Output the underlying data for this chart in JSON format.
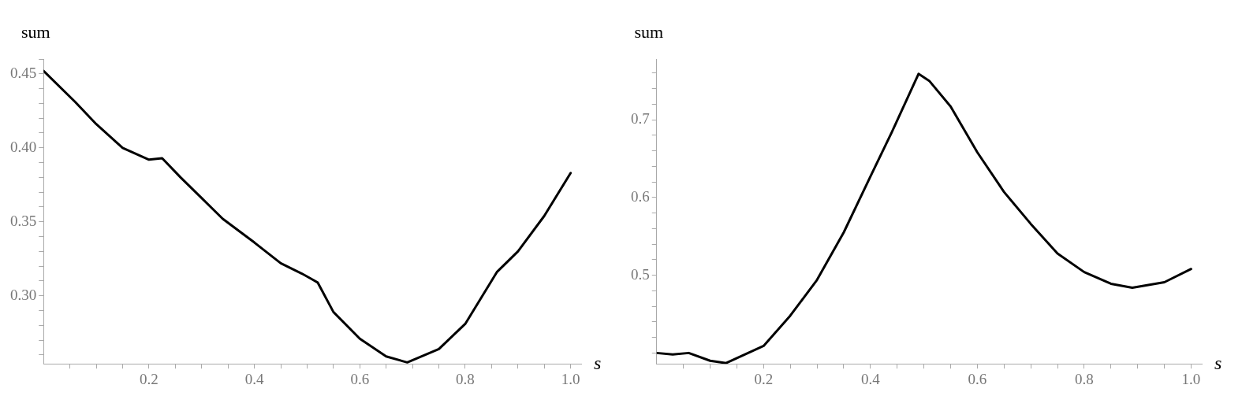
{
  "chart_data": [
    {
      "type": "line",
      "xlabel": "s",
      "ylabel": "sum",
      "marker": "none",
      "line_style": "solid",
      "grid": false,
      "legend": false,
      "xlim": [
        0,
        1.02
      ],
      "ylim": [
        0.254,
        0.46
      ],
      "xticks": [
        {
          "value": 0.05,
          "label": null
        },
        {
          "value": 0.1,
          "label": null
        },
        {
          "value": 0.15,
          "label": null
        },
        {
          "value": 0.2,
          "label": "0.2"
        },
        {
          "value": 0.25,
          "label": null
        },
        {
          "value": 0.3,
          "label": null
        },
        {
          "value": 0.35,
          "label": null
        },
        {
          "value": 0.4,
          "label": "0.4"
        },
        {
          "value": 0.45,
          "label": null
        },
        {
          "value": 0.5,
          "label": null
        },
        {
          "value": 0.55,
          "label": null
        },
        {
          "value": 0.6,
          "label": "0.6"
        },
        {
          "value": 0.65,
          "label": null
        },
        {
          "value": 0.7,
          "label": null
        },
        {
          "value": 0.75,
          "label": null
        },
        {
          "value": 0.8,
          "label": "0.8"
        },
        {
          "value": 0.85,
          "label": null
        },
        {
          "value": 0.9,
          "label": null
        },
        {
          "value": 0.95,
          "label": null
        },
        {
          "value": 1.0,
          "label": "1.0"
        }
      ],
      "yticks": [
        {
          "value": 0.26,
          "label": null
        },
        {
          "value": 0.27,
          "label": null
        },
        {
          "value": 0.28,
          "label": null
        },
        {
          "value": 0.29,
          "label": null
        },
        {
          "value": 0.3,
          "label": "0.30"
        },
        {
          "value": 0.31,
          "label": null
        },
        {
          "value": 0.32,
          "label": null
        },
        {
          "value": 0.33,
          "label": null
        },
        {
          "value": 0.34,
          "label": null
        },
        {
          "value": 0.35,
          "label": "0.35"
        },
        {
          "value": 0.36,
          "label": null
        },
        {
          "value": 0.37,
          "label": null
        },
        {
          "value": 0.38,
          "label": null
        },
        {
          "value": 0.39,
          "label": null
        },
        {
          "value": 0.4,
          "label": "0.40"
        },
        {
          "value": 0.41,
          "label": null
        },
        {
          "value": 0.42,
          "label": null
        },
        {
          "value": 0.43,
          "label": null
        },
        {
          "value": 0.44,
          "label": null
        },
        {
          "value": 0.45,
          "label": "0.45"
        },
        {
          "value": 0.46,
          "label": null
        }
      ],
      "series": [
        {
          "color": "#000000",
          "x": [
            0,
            0.06,
            0.1,
            0.15,
            0.2,
            0.225,
            0.26,
            0.3,
            0.34,
            0.4,
            0.45,
            0.49,
            0.51,
            0.52,
            0.55,
            0.6,
            0.65,
            0.69,
            0.75,
            0.8,
            0.86,
            0.9,
            0.95,
            1.0
          ],
          "values": [
            0.452,
            0.431,
            0.416,
            0.4,
            0.392,
            0.393,
            0.38,
            0.366,
            0.352,
            0.336,
            0.322,
            0.315,
            0.311,
            0.309,
            0.289,
            0.271,
            0.259,
            0.255,
            0.264,
            0.281,
            0.316,
            0.33,
            0.354,
            0.383
          ]
        }
      ]
    },
    {
      "type": "line",
      "xlabel": "s",
      "ylabel": "sum",
      "marker": "none",
      "line_style": "solid",
      "grid": false,
      "legend": false,
      "xlim": [
        0,
        1.02
      ],
      "ylim": [
        0.386,
        0.778
      ],
      "xticks": [
        {
          "value": 0.05,
          "label": null
        },
        {
          "value": 0.1,
          "label": null
        },
        {
          "value": 0.15,
          "label": null
        },
        {
          "value": 0.2,
          "label": "0.2"
        },
        {
          "value": 0.25,
          "label": null
        },
        {
          "value": 0.3,
          "label": null
        },
        {
          "value": 0.35,
          "label": null
        },
        {
          "value": 0.4,
          "label": "0.4"
        },
        {
          "value": 0.45,
          "label": null
        },
        {
          "value": 0.5,
          "label": null
        },
        {
          "value": 0.55,
          "label": null
        },
        {
          "value": 0.6,
          "label": "0.6"
        },
        {
          "value": 0.65,
          "label": null
        },
        {
          "value": 0.7,
          "label": null
        },
        {
          "value": 0.75,
          "label": null
        },
        {
          "value": 0.8,
          "label": "0.8"
        },
        {
          "value": 0.85,
          "label": null
        },
        {
          "value": 0.9,
          "label": null
        },
        {
          "value": 0.95,
          "label": null
        },
        {
          "value": 1.0,
          "label": "1.0"
        }
      ],
      "yticks": [
        {
          "value": 0.4,
          "label": null
        },
        {
          "value": 0.42,
          "label": null
        },
        {
          "value": 0.44,
          "label": null
        },
        {
          "value": 0.46,
          "label": null
        },
        {
          "value": 0.48,
          "label": null
        },
        {
          "value": 0.5,
          "label": "0.5"
        },
        {
          "value": 0.52,
          "label": null
        },
        {
          "value": 0.54,
          "label": null
        },
        {
          "value": 0.56,
          "label": null
        },
        {
          "value": 0.58,
          "label": null
        },
        {
          "value": 0.6,
          "label": "0.6"
        },
        {
          "value": 0.62,
          "label": null
        },
        {
          "value": 0.64,
          "label": null
        },
        {
          "value": 0.66,
          "label": null
        },
        {
          "value": 0.68,
          "label": null
        },
        {
          "value": 0.7,
          "label": "0.7"
        },
        {
          "value": 0.72,
          "label": null
        },
        {
          "value": 0.74,
          "label": null
        },
        {
          "value": 0.76,
          "label": null
        }
      ],
      "series": [
        {
          "color": "#000000",
          "x": [
            0,
            0.03,
            0.06,
            0.1,
            0.13,
            0.2,
            0.25,
            0.3,
            0.35,
            0.4,
            0.44,
            0.49,
            0.51,
            0.55,
            0.6,
            0.65,
            0.7,
            0.75,
            0.8,
            0.85,
            0.89,
            0.95,
            1.0
          ],
          "values": [
            0.4,
            0.398,
            0.4,
            0.39,
            0.387,
            0.409,
            0.448,
            0.494,
            0.555,
            0.627,
            0.684,
            0.759,
            0.75,
            0.717,
            0.658,
            0.607,
            0.566,
            0.528,
            0.504,
            0.489,
            0.484,
            0.491,
            0.508
          ]
        }
      ]
    }
  ]
}
